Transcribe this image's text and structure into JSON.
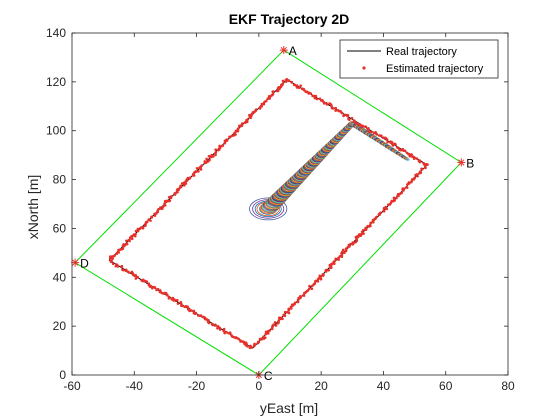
{
  "chart_data": {
    "type": "scatter",
    "title": "EKF Trajectory 2D",
    "xlabel": "yEast [m]",
    "ylabel": "xNorth [m]",
    "xlim": [
      -60,
      80
    ],
    "ylim": [
      0,
      140
    ],
    "xticks": [
      -60,
      -40,
      -20,
      0,
      20,
      40,
      60,
      80
    ],
    "yticks": [
      0,
      20,
      40,
      60,
      80,
      100,
      120,
      140
    ],
    "grid": false,
    "legend": {
      "position": "top-right",
      "entries": [
        {
          "label": "Real trajectory",
          "marker": "line",
          "color": "#000000"
        },
        {
          "label": "Estimated trajectory",
          "marker": "dot",
          "color": "#e8302a"
        }
      ]
    },
    "anchors": [
      {
        "label": "A",
        "x": 8,
        "y": 133
      },
      {
        "label": "B",
        "x": 65,
        "y": 87
      },
      {
        "label": "C",
        "x": 0,
        "y": 0
      },
      {
        "label": "D",
        "x": -59,
        "y": 46
      }
    ],
    "anchor_boundary": {
      "color": "#00e000"
    },
    "real_trajectory": [
      {
        "x": 9,
        "y": 121
      },
      {
        "x": 54,
        "y": 86
      },
      {
        "x": -2,
        "y": 11
      },
      {
        "x": -48,
        "y": 47
      },
      {
        "x": 9,
        "y": 121
      }
    ],
    "estimated_trajectory_color": "#e8302a",
    "uncertainty_path": [
      {
        "x": 3,
        "y": 68
      },
      {
        "x": 30,
        "y": 103
      },
      {
        "x": 48,
        "y": 88
      }
    ],
    "uncertainty_ellipses": {
      "initial": [
        {
          "rx": 6.0,
          "ry": 4.5,
          "color": "#3b58a8"
        },
        {
          "rx": 5.0,
          "ry": 3.8,
          "color": "#7e2f8e"
        },
        {
          "rx": 4.2,
          "ry": 3.2,
          "color": "#0072bd"
        },
        {
          "rx": 3.6,
          "ry": 2.8,
          "color": "#d95319"
        }
      ],
      "colors": [
        "#0072bd",
        "#d95319",
        "#edb120",
        "#7e2f8e",
        "#77ac30",
        "#4dbeee",
        "#a2142f"
      ]
    },
    "colors": {
      "axis": "#262626",
      "background": "#ffffff"
    }
  }
}
